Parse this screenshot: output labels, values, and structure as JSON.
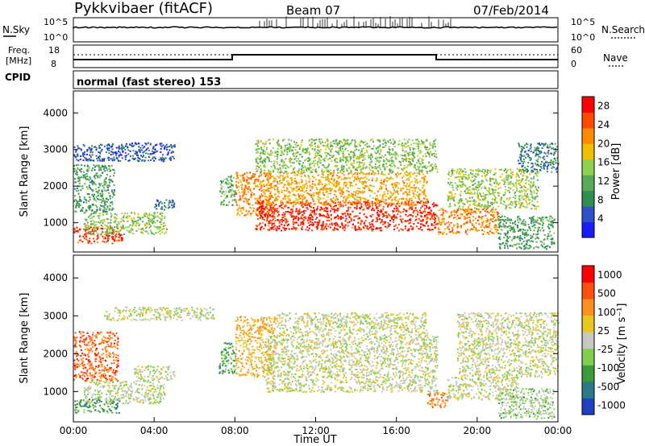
{
  "header": {
    "station": "Pykkvibaer (fitACF)",
    "beam": "Beam 07",
    "date": "07/Feb/2014"
  },
  "strip1": {
    "left_label": "N.Sky",
    "right_label": "N.Search",
    "left_ticks": [
      "10^5",
      "10^0"
    ],
    "right_ticks": [
      "10^5",
      "10^0"
    ]
  },
  "strip2": {
    "left_label_1": "Freq.",
    "left_label_2": "[MHz]",
    "right_label": "Nave",
    "left_ticks": [
      "18",
      "8"
    ],
    "right_ticks": [
      "60",
      "0"
    ]
  },
  "strip3": {
    "left_label": "CPID",
    "text": "normal (fast stereo) 153"
  },
  "colors": {
    "power_scale": [
      "#1a1aff",
      "#3050c8",
      "#2f8f4f",
      "#5aa85a",
      "#8fd14f",
      "#f0c000",
      "#ff8c00",
      "#ff4a00",
      "#ff0000"
    ],
    "velocity_scale": [
      "#2040c0",
      "#2a7a8a",
      "#3c9a3c",
      "#7fd04f",
      "#c8c8c0",
      "#e8c820",
      "#ff9020",
      "#ff5010",
      "#ff0000"
    ]
  },
  "chart_data": [
    {
      "type": "heatmap",
      "title": "",
      "ylabel": "Slant Range [km]",
      "xlabel": "",
      "ylim": [
        200,
        4600
      ],
      "xlim": [
        0,
        24
      ],
      "y_ticks": [
        "1000",
        "2000",
        "3000",
        "4000"
      ],
      "colorbar_label": "Power [dB]",
      "colorbar_ticks": [
        "4",
        "8",
        "12",
        "16",
        "20",
        "24",
        "28"
      ],
      "colorbar_range": [
        0,
        30
      ],
      "regions": [
        {
          "t0": 0.0,
          "t1": 2.4,
          "r0": 450,
          "r1": 900,
          "value": 26
        },
        {
          "t0": 0.5,
          "t1": 4.6,
          "r0": 700,
          "r1": 1300,
          "value": 14
        },
        {
          "t0": 0.0,
          "t1": 2.0,
          "r0": 1300,
          "r1": 2600,
          "value": 10
        },
        {
          "t0": 0.0,
          "t1": 5.0,
          "r0": 2700,
          "r1": 3200,
          "value": 5
        },
        {
          "t0": 4.0,
          "t1": 5.0,
          "r0": 1350,
          "r1": 1650,
          "value": 6
        },
        {
          "t0": 7.2,
          "t1": 8.0,
          "r0": 1500,
          "r1": 2300,
          "value": 12
        },
        {
          "t0": 8.0,
          "t1": 9.8,
          "r0": 1200,
          "r1": 2400,
          "value": 22
        },
        {
          "t0": 9.0,
          "t1": 18.0,
          "r0": 800,
          "r1": 1600,
          "value": 27
        },
        {
          "t0": 9.5,
          "t1": 17.5,
          "r0": 1500,
          "r1": 2400,
          "value": 20
        },
        {
          "t0": 9.0,
          "t1": 18.0,
          "r0": 2400,
          "r1": 3300,
          "value": 14
        },
        {
          "t0": 18.0,
          "t1": 21.0,
          "r0": 700,
          "r1": 1400,
          "value": 22
        },
        {
          "t0": 18.5,
          "t1": 23.0,
          "r0": 1400,
          "r1": 2500,
          "value": 15
        },
        {
          "t0": 21.0,
          "t1": 23.8,
          "r0": 300,
          "r1": 1200,
          "value": 10
        },
        {
          "t0": 22.0,
          "t1": 24.0,
          "r0": 2400,
          "r1": 3200,
          "value": 8
        }
      ]
    },
    {
      "type": "heatmap",
      "title": "",
      "ylabel": "Slant Range [km]",
      "xlabel": "Time UT",
      "ylim": [
        200,
        4600
      ],
      "xlim": [
        0,
        24
      ],
      "x_ticks": [
        "00:00",
        "04:00",
        "08:00",
        "12:00",
        "16:00",
        "20:00",
        "00:00"
      ],
      "y_ticks": [
        "1000",
        "2000",
        "3000",
        "4000"
      ],
      "colorbar_label": "Velocity [m s⁻¹]",
      "colorbar_ticks": [
        "1000",
        "500",
        "100",
        "25",
        "-25",
        "-100",
        "-500",
        "-1000"
      ],
      "colorbar_range": [
        -1000,
        1000
      ],
      "regions": [
        {
          "t0": 0.0,
          "t1": 2.3,
          "r0": 450,
          "r1": 850,
          "value": -450
        },
        {
          "t0": 0.5,
          "t1": 4.5,
          "r0": 700,
          "r1": 1300,
          "value": -60
        },
        {
          "t0": 0.0,
          "t1": 2.2,
          "r0": 1300,
          "r1": 2600,
          "value": 600
        },
        {
          "t0": 1.5,
          "t1": 7.0,
          "r0": 2900,
          "r1": 3250,
          "value": 0
        },
        {
          "t0": 3.0,
          "t1": 5.0,
          "r0": 1300,
          "r1": 1700,
          "value": 0
        },
        {
          "t0": 7.2,
          "t1": 8.0,
          "r0": 1500,
          "r1": 2300,
          "value": -400
        },
        {
          "t0": 8.0,
          "t1": 10.0,
          "r0": 1400,
          "r1": 3000,
          "value": 300
        },
        {
          "t0": 9.5,
          "t1": 18.0,
          "r0": 1000,
          "r1": 2500,
          "value": 0
        },
        {
          "t0": 10.0,
          "t1": 17.5,
          "r0": 2500,
          "r1": 3100,
          "value": 0
        },
        {
          "t0": 17.5,
          "t1": 18.5,
          "r0": 600,
          "r1": 1000,
          "value": 500
        },
        {
          "t0": 18.5,
          "t1": 22.0,
          "r0": 800,
          "r1": 1400,
          "value": 0
        },
        {
          "t0": 19.0,
          "t1": 24.0,
          "r0": 1400,
          "r1": 3100,
          "value": 0
        },
        {
          "t0": 21.0,
          "t1": 23.8,
          "r0": 300,
          "r1": 1100,
          "value": -150
        }
      ]
    }
  ]
}
